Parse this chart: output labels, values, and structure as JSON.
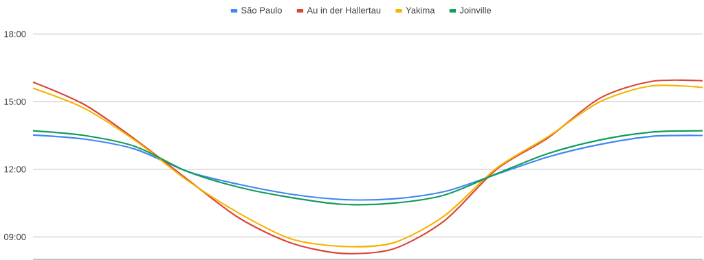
{
  "chart_data": {
    "type": "line",
    "categories": [
      null,
      null,
      null,
      null,
      null,
      null,
      null,
      null,
      null,
      null,
      null,
      null,
      null,
      null
    ],
    "series": [
      {
        "name": "São Paulo",
        "color": "#4285f4",
        "values": [
          13.52,
          13.34,
          12.88,
          11.9,
          11.33,
          10.9,
          10.66,
          10.69,
          11.02,
          11.78,
          12.55,
          13.1,
          13.46,
          13.5
        ]
      },
      {
        "name": "Au in der Hallertau",
        "color": "#db4437",
        "values": [
          15.87,
          14.87,
          13.3,
          11.55,
          9.84,
          8.74,
          8.27,
          8.47,
          9.74,
          12.0,
          13.4,
          15.15,
          15.9,
          15.93
        ]
      },
      {
        "name": "Yakima",
        "color": "#f4b400",
        "values": [
          15.6,
          14.7,
          13.25,
          11.5,
          10.05,
          8.92,
          8.58,
          8.74,
          9.96,
          12.05,
          13.45,
          14.99,
          15.7,
          15.63
        ]
      },
      {
        "name": "Joinville",
        "color": "#0f9d58",
        "values": [
          13.71,
          13.5,
          13.0,
          11.9,
          11.2,
          10.75,
          10.45,
          10.5,
          10.87,
          11.8,
          12.7,
          13.3,
          13.65,
          13.71
        ]
      }
    ],
    "ylim": [
      8,
      18
    ],
    "yticks": [
      {
        "value": 9,
        "label": "09:00"
      },
      {
        "value": 12,
        "label": "12:00"
      },
      {
        "value": 15,
        "label": "15:00"
      },
      {
        "value": 18,
        "label": "18:00"
      }
    ],
    "grid": "y",
    "legend": "top",
    "marker": "none",
    "line_style": "solid"
  }
}
